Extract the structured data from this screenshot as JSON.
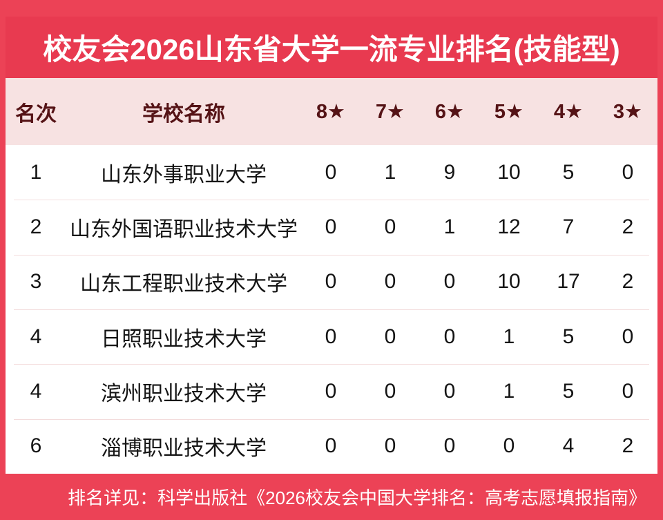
{
  "banner": {
    "title": "校友会2026山东省大学一流专业排名(技能型)"
  },
  "table": {
    "headers": {
      "rank": "名次",
      "school": "学校名称",
      "stars": [
        "8★",
        "7★",
        "6★",
        "5★",
        "4★",
        "3★"
      ]
    },
    "rows": [
      {
        "rank": "1",
        "school": "山东外事职业大学",
        "values": [
          "0",
          "1",
          "9",
          "10",
          "5",
          "0"
        ]
      },
      {
        "rank": "2",
        "school": "山东外国语职业技术大学",
        "values": [
          "0",
          "0",
          "1",
          "12",
          "7",
          "2"
        ]
      },
      {
        "rank": "3",
        "school": "山东工程职业技术大学",
        "values": [
          "0",
          "0",
          "0",
          "10",
          "17",
          "2"
        ]
      },
      {
        "rank": "4",
        "school": "日照职业技术大学",
        "values": [
          "0",
          "0",
          "0",
          "1",
          "5",
          "0"
        ]
      },
      {
        "rank": "4",
        "school": "滨州职业技术大学",
        "values": [
          "0",
          "0",
          "0",
          "1",
          "5",
          "0"
        ]
      },
      {
        "rank": "6",
        "school": "淄博职业技术大学",
        "values": [
          "0",
          "0",
          "0",
          "0",
          "4",
          "2"
        ]
      }
    ]
  },
  "footer": {
    "note": "排名详见：科学出版社《2026校友会中国大学排名：高考志愿填报指南》"
  },
  "colors": {
    "page_bg": "#EC4256",
    "banner_bg": "#E83A50",
    "header_bg": "#F7E2E2",
    "header_text": "#551316",
    "body_text": "#141414",
    "divider": "#F3DCDC",
    "table_bg": "#FFFFFF",
    "title_text": "#FFFFFF",
    "footer_text": "#FFFFFF"
  },
  "chart_data": {
    "type": "table",
    "title": "校友会2026山东省大学一流专业排名(技能型)",
    "columns": [
      "名次",
      "学校名称",
      "8★",
      "7★",
      "6★",
      "5★",
      "4★",
      "3★"
    ],
    "rows": [
      [
        "1",
        "山东外事职业大学",
        0,
        1,
        9,
        10,
        5,
        0
      ],
      [
        "2",
        "山东外国语职业技术大学",
        0,
        0,
        1,
        12,
        7,
        2
      ],
      [
        "3",
        "山东工程职业技术大学",
        0,
        0,
        0,
        10,
        17,
        2
      ],
      [
        "4",
        "日照职业技术大学",
        0,
        0,
        0,
        1,
        5,
        0
      ],
      [
        "4",
        "滨州职业技术大学",
        0,
        0,
        0,
        1,
        5,
        0
      ],
      [
        "6",
        "淄博职业技术大学",
        0,
        0,
        0,
        0,
        4,
        2
      ]
    ],
    "footnote": "排名详见：科学出版社《2026校友会中国大学排名：高考志愿填报指南》"
  }
}
